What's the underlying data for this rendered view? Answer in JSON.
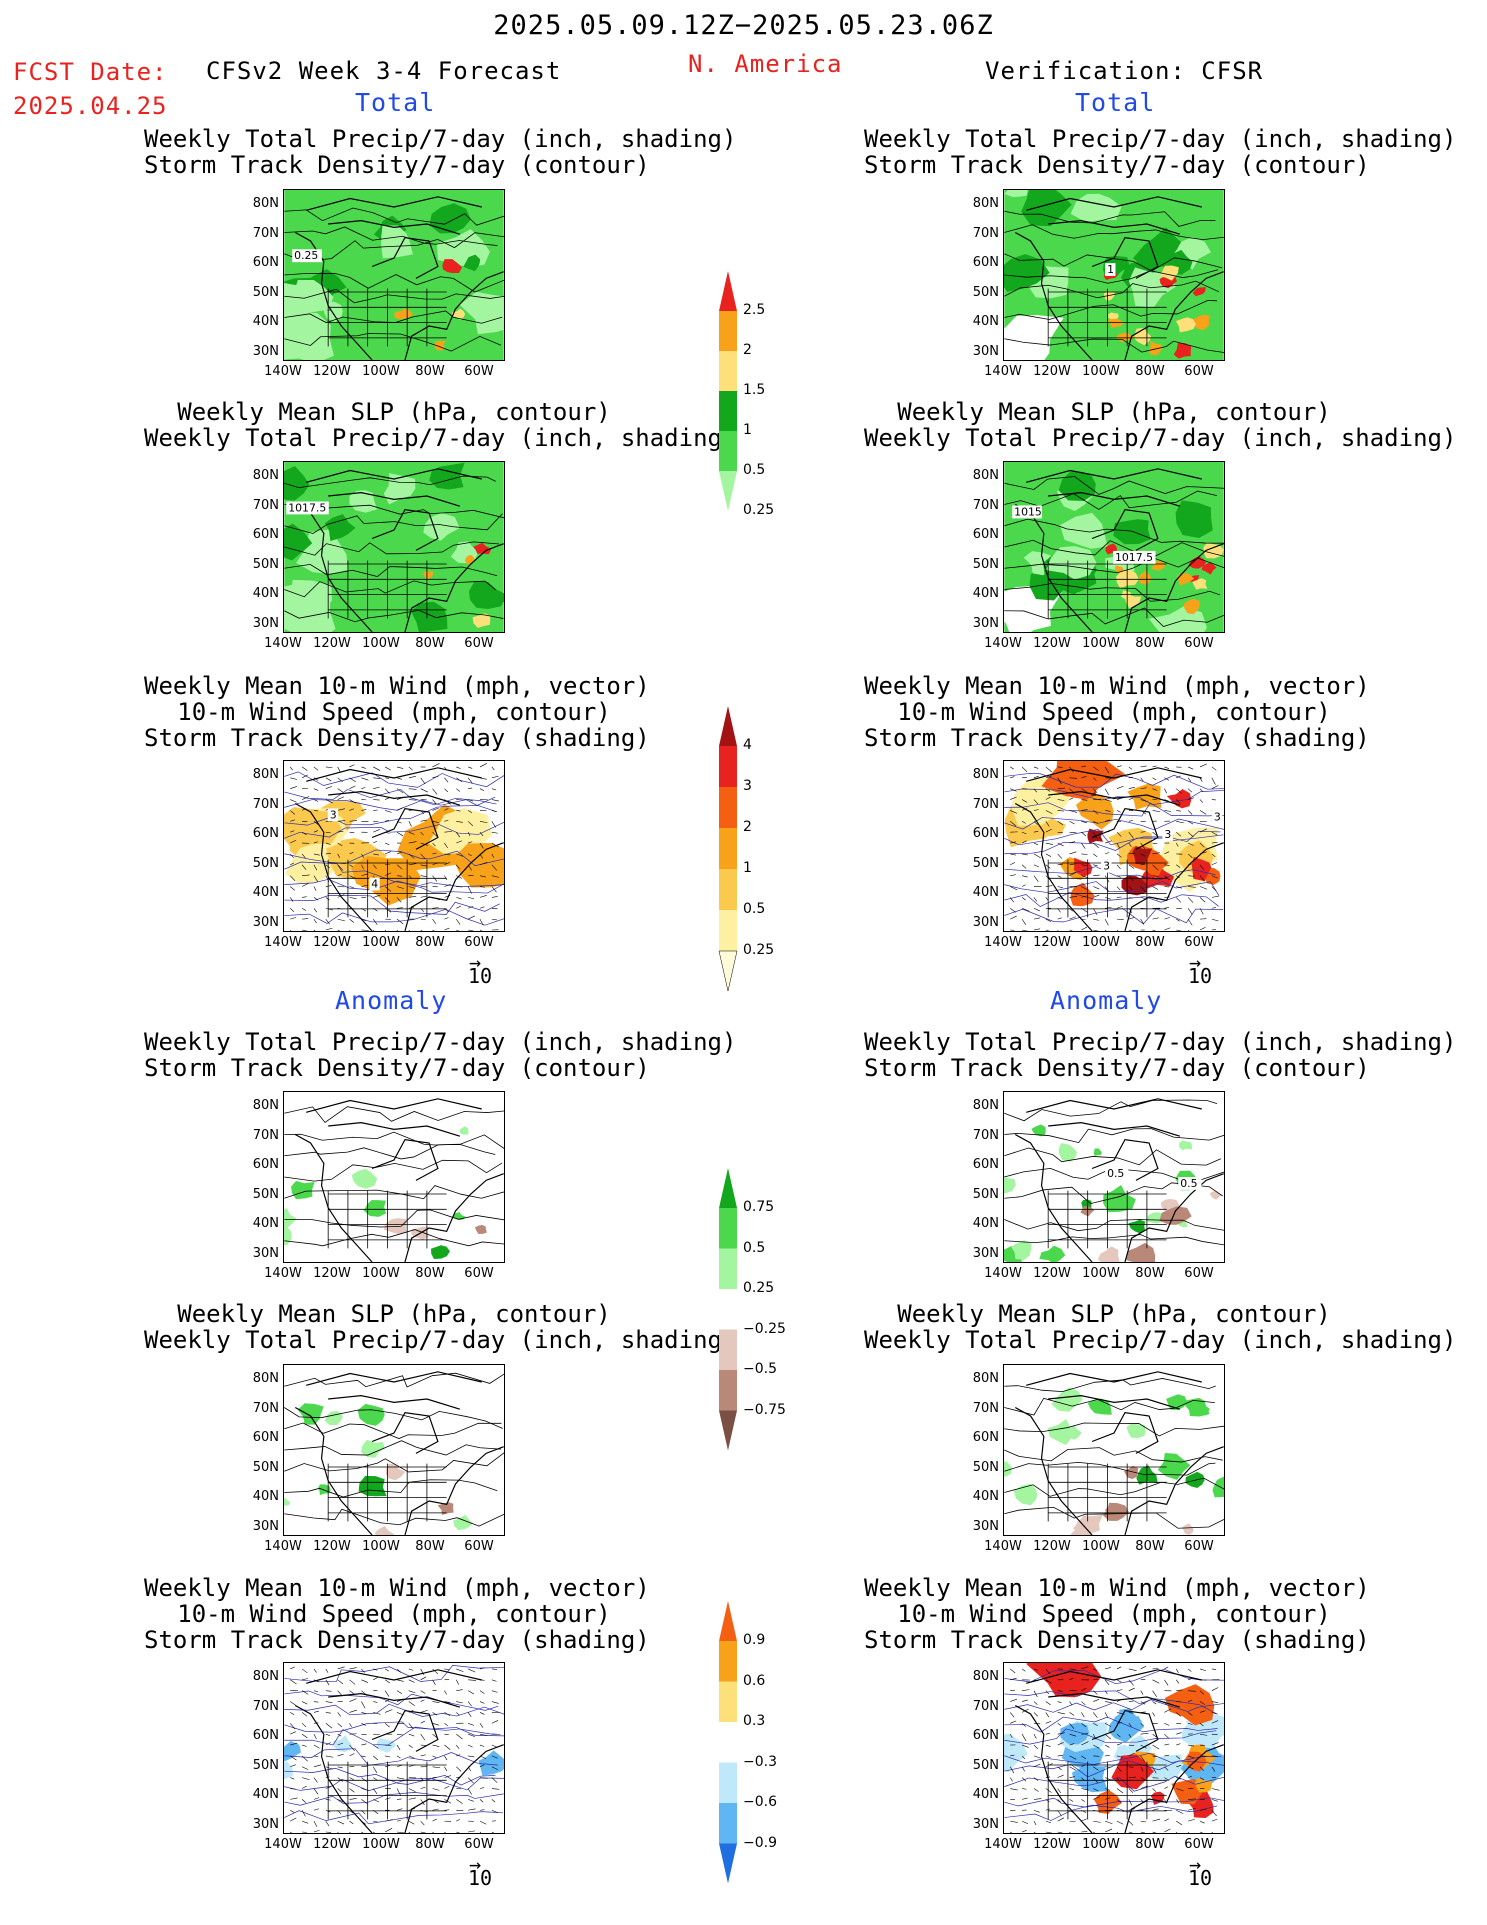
{
  "header": {
    "date_range": "2025.05.09.12Z−2025.05.23.06Z",
    "fcst_label": "FCST Date:",
    "fcst_date": "2025.04.25",
    "model_title": "CFSv2 Week 3-4 Forecast",
    "region": "N. America",
    "verification": "Verification: CFSR"
  },
  "section_labels": {
    "total": "Total",
    "anomaly": "Anomaly"
  },
  "titles": {
    "precip_storm": [
      "Weekly Total Precip/7-day (inch, shading)",
      "Storm Track Density/7-day (contour)"
    ],
    "slp_precip": [
      "Weekly Mean SLP (hPa, contour)",
      "Weekly Total Precip/7-day (inch, shading)"
    ],
    "wind_storm": [
      "Weekly Mean 10-m Wind (mph, vector)",
      "10-m Wind Speed (mph, contour)",
      "Storm Track Density/7-day (shading)"
    ]
  },
  "axes": {
    "lat_labels": [
      "80N",
      "70N",
      "60N",
      "50N",
      "40N",
      "30N"
    ],
    "lon_labels": [
      "140W",
      "120W",
      "100W",
      "80W",
      "60W"
    ]
  },
  "vector_ref": "10",
  "contour_labels": {
    "fc_precip": "0.25",
    "fc_slp": "1017.5",
    "fc_wind": [
      "3",
      "4"
    ],
    "vr_storm": "1",
    "vr_slp": [
      "1015",
      "1017.5"
    ],
    "vr_wind": [
      "3",
      "3",
      "3"
    ],
    "vr_anom_storm": [
      "0.5",
      "0.5"
    ]
  },
  "colorbars": {
    "precip_total": {
      "labels": [
        "2.5",
        "2",
        "1.5",
        "1",
        "0.5",
        "0.25"
      ],
      "colors": [
        "#e8231f",
        "#f8a21a",
        "#fde07a",
        "#12a71d",
        "#4cd84c",
        "#a3f5a0"
      ]
    },
    "storm_total": {
      "labels": [
        "4",
        "3",
        "2",
        "1",
        "0.5",
        "0.25"
      ],
      "colors": [
        "#a41313",
        "#e8231f",
        "#f45f12",
        "#f8a21a",
        "#fbc94e",
        "#fdf0a1",
        "#fefcd8"
      ]
    },
    "precip_anom": {
      "labels": [
        "0.75",
        "0.5",
        "0.25",
        "−0.25",
        "−0.5",
        "−0.75"
      ],
      "colors": [
        "#12a71d",
        "#4cd84c",
        "#a3f5a0",
        "#ffffff",
        "#e4c7bd",
        "#b98879",
        "#7a5044"
      ]
    },
    "storm_anom": {
      "labels": [
        "0.9",
        "0.6",
        "0.3",
        "−0.3",
        "−0.6",
        "−0.9"
      ],
      "colors": [
        "#f45f12",
        "#f8a21a",
        "#fde07a",
        "#ffffff",
        "#bfe8fb",
        "#5fb6f2",
        "#1f6fe0"
      ]
    }
  }
}
